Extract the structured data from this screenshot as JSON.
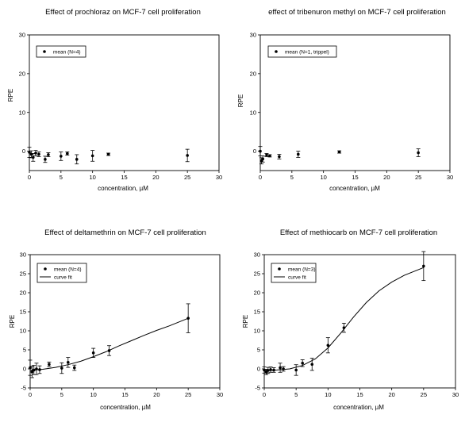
{
  "chart_data": [
    {
      "type": "scatter",
      "title": "Effect of prochloraz on MCF-7 cell proliferation",
      "xlabel": "concentration, µM",
      "ylabel": "RPE",
      "xlim": [
        0,
        30
      ],
      "ylim": [
        -5,
        30
      ],
      "xticks": [
        "0",
        "5",
        "10",
        "15",
        "20",
        "25",
        "30"
      ],
      "yticks": [
        "0",
        "10",
        "20",
        "30"
      ],
      "legend": {
        "position": "top-left",
        "entries": [
          {
            "label": "mean (N=4)",
            "marker": "point"
          }
        ]
      },
      "series": [
        {
          "name": "mean (N=4)",
          "points": [
            {
              "x": 0.0,
              "y": -0.3,
              "err": 1.3
            },
            {
              "x": 0.3,
              "y": -0.8,
              "err": 0.9
            },
            {
              "x": 0.6,
              "y": -1.6,
              "err": 1.0
            },
            {
              "x": 1.0,
              "y": -0.5,
              "err": 0.7
            },
            {
              "x": 1.5,
              "y": -0.8,
              "err": 0.6
            },
            {
              "x": 2.5,
              "y": -2.1,
              "err": 0.8
            },
            {
              "x": 3.0,
              "y": -0.9,
              "err": 0.5
            },
            {
              "x": 5.0,
              "y": -1.3,
              "err": 1.1
            },
            {
              "x": 6.0,
              "y": -0.6,
              "err": 0.4
            },
            {
              "x": 7.5,
              "y": -2.1,
              "err": 1.2
            },
            {
              "x": 10.0,
              "y": -1.2,
              "err": 1.4
            },
            {
              "x": 12.5,
              "y": -0.8,
              "err": 0.3
            },
            {
              "x": 25.0,
              "y": -1.1,
              "err": 1.6
            }
          ]
        }
      ]
    },
    {
      "type": "scatter",
      "title": "effect of tribenuron methyl on MCF-7 cell proliferation",
      "xlabel": "concentration, µM",
      "ylabel": "RPE",
      "xlim": [
        0,
        30
      ],
      "ylim": [
        -5,
        30
      ],
      "xticks": [
        "0",
        "5",
        "10",
        "15",
        "20",
        "25",
        "30"
      ],
      "yticks": [
        "0",
        "10",
        "20",
        "30"
      ],
      "legend": {
        "position": "top-left",
        "entries": [
          {
            "label": "mean (N=1, trippel)",
            "marker": "point"
          }
        ]
      },
      "series": [
        {
          "name": "mean (N=1, trippel)",
          "points": [
            {
              "x": 0.0,
              "y": 0.0,
              "err": 1.2
            },
            {
              "x": 0.2,
              "y": -2.5,
              "err": 0.8
            },
            {
              "x": 0.4,
              "y": -2.0,
              "err": 0.8
            },
            {
              "x": 1.0,
              "y": -1.0,
              "err": 0.4
            },
            {
              "x": 1.5,
              "y": -1.2,
              "err": 0.3
            },
            {
              "x": 3.0,
              "y": -1.4,
              "err": 0.6
            },
            {
              "x": 6.0,
              "y": -0.8,
              "err": 0.8
            },
            {
              "x": 12.5,
              "y": -0.2,
              "err": 0.3
            },
            {
              "x": 25.0,
              "y": -0.4,
              "err": 1.0
            }
          ]
        }
      ]
    },
    {
      "type": "scatter",
      "title": "Effect of deltamethrin on MCF-7 cell proliferation",
      "xlabel": "concentration, µM",
      "ylabel": "RPE",
      "xlim": [
        0,
        30
      ],
      "ylim": [
        -5,
        30
      ],
      "xticks": [
        "0",
        "5",
        "10",
        "15",
        "20",
        "25",
        "30"
      ],
      "yticks": [
        "-5",
        "0",
        "5",
        "10",
        "15",
        "20",
        "25",
        "30"
      ],
      "legend": {
        "position": "top-left",
        "entries": [
          {
            "label": "mean (N=4)",
            "marker": "point"
          },
          {
            "label": "curve fit",
            "marker": "line"
          }
        ]
      },
      "series": [
        {
          "name": "mean (N=4)",
          "points": [
            {
              "x": 0.0,
              "y": 0.3,
              "err": 2.0
            },
            {
              "x": 0.3,
              "y": -0.8,
              "err": 1.5
            },
            {
              "x": 0.6,
              "y": -0.3,
              "err": 1.2
            },
            {
              "x": 1.0,
              "y": 0.0,
              "err": 1.5
            },
            {
              "x": 1.5,
              "y": -0.2,
              "err": 1.0
            },
            {
              "x": 3.0,
              "y": 1.2,
              "err": 0.6
            },
            {
              "x": 5.0,
              "y": 0.2,
              "err": 1.4
            },
            {
              "x": 6.0,
              "y": 1.7,
              "err": 1.3
            },
            {
              "x": 7.0,
              "y": 0.3,
              "err": 0.7
            },
            {
              "x": 10.0,
              "y": 4.2,
              "err": 1.2
            },
            {
              "x": 12.5,
              "y": 4.8,
              "err": 1.3
            },
            {
              "x": 25.0,
              "y": 13.3,
              "err": 3.8
            }
          ]
        },
        {
          "name": "curve fit",
          "line": [
            [
              0,
              -0.4
            ],
            [
              2,
              -0.1
            ],
            [
              4,
              0.4
            ],
            [
              6,
              1.1
            ],
            [
              8,
              2.0
            ],
            [
              10,
              3.2
            ],
            [
              12,
              4.5
            ],
            [
              14,
              6.0
            ],
            [
              16,
              7.4
            ],
            [
              18,
              8.8
            ],
            [
              20,
              10.1
            ],
            [
              22,
              11.3
            ],
            [
              25,
              13.3
            ]
          ]
        }
      ]
    },
    {
      "type": "scatter",
      "title": "Effect of methiocarb on MCF-7 cell proliferation",
      "xlabel": "concentration, µM",
      "ylabel": "RPE",
      "xlim": [
        0,
        30
      ],
      "ylim": [
        -5,
        30
      ],
      "xticks": [
        "0",
        "5",
        "10",
        "15",
        "20",
        "25",
        "30"
      ],
      "yticks": [
        "-5",
        "0",
        "5",
        "10",
        "15",
        "20",
        "25",
        "30"
      ],
      "legend": {
        "position": "top-left",
        "entries": [
          {
            "label": "mean (N=3)",
            "marker": "point"
          },
          {
            "label": "curve fit",
            "marker": "line"
          }
        ]
      },
      "series": [
        {
          "name": "mean (N=3)",
          "points": [
            {
              "x": 0.0,
              "y": -0.3,
              "err": 0.8
            },
            {
              "x": 0.3,
              "y": -0.8,
              "err": 0.7
            },
            {
              "x": 0.6,
              "y": -0.4,
              "err": 0.8
            },
            {
              "x": 1.0,
              "y": -0.2,
              "err": 0.7
            },
            {
              "x": 1.5,
              "y": -0.3,
              "err": 0.6
            },
            {
              "x": 2.5,
              "y": 0.3,
              "err": 1.2
            },
            {
              "x": 3.0,
              "y": 0.0,
              "err": 0.6
            },
            {
              "x": 5.0,
              "y": -0.3,
              "err": 1.4
            },
            {
              "x": 6.0,
              "y": 1.5,
              "err": 0.9
            },
            {
              "x": 7.5,
              "y": 1.2,
              "err": 1.6
            },
            {
              "x": 10.0,
              "y": 6.2,
              "err": 2.0
            },
            {
              "x": 12.5,
              "y": 10.8,
              "err": 1.2
            },
            {
              "x": 25.0,
              "y": 27.0,
              "err": 3.8
            }
          ]
        },
        {
          "name": "curve fit",
          "line": [
            [
              0,
              -0.5
            ],
            [
              2,
              -0.3
            ],
            [
              4,
              0.0
            ],
            [
              6,
              0.9
            ],
            [
              8,
              2.6
            ],
            [
              10,
              5.5
            ],
            [
              12,
              9.4
            ],
            [
              14,
              13.6
            ],
            [
              16,
              17.4
            ],
            [
              18,
              20.5
            ],
            [
              20,
              22.8
            ],
            [
              22,
              24.6
            ],
            [
              25,
              26.6
            ]
          ]
        }
      ]
    }
  ]
}
